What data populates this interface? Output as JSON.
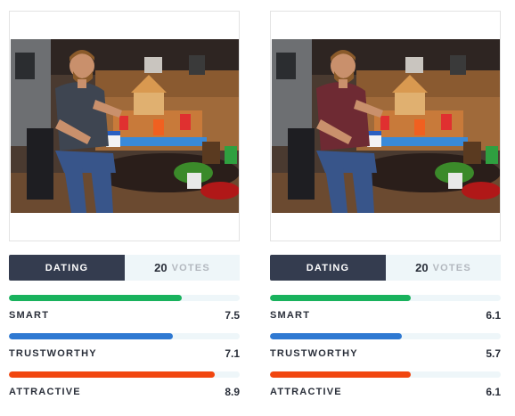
{
  "cards": [
    {
      "tab_label": "DATING",
      "votes_count": "20",
      "votes_label": "VOTES",
      "shirt_color": "#3e4551",
      "metrics": [
        {
          "name": "SMART",
          "score": "7.5",
          "level": 0.75,
          "color": "#19b25d"
        },
        {
          "name": "TRUSTWORTHY",
          "score": "7.1",
          "level": 0.71,
          "color": "#2f79d2"
        },
        {
          "name": "ATTRACTIVE",
          "score": "8.9",
          "level": 0.89,
          "color": "#f1460f"
        }
      ]
    },
    {
      "tab_label": "DATING",
      "votes_count": "20",
      "votes_label": "VOTES",
      "shirt_color": "#6e2a33",
      "metrics": [
        {
          "name": "SMART",
          "score": "6.1",
          "level": 0.61,
          "color": "#19b25d"
        },
        {
          "name": "TRUSTWORTHY",
          "score": "5.7",
          "level": 0.57,
          "color": "#2f79d2"
        },
        {
          "name": "ATTRACTIVE",
          "score": "6.1",
          "level": 0.61,
          "color": "#f1460f"
        }
      ]
    }
  ]
}
